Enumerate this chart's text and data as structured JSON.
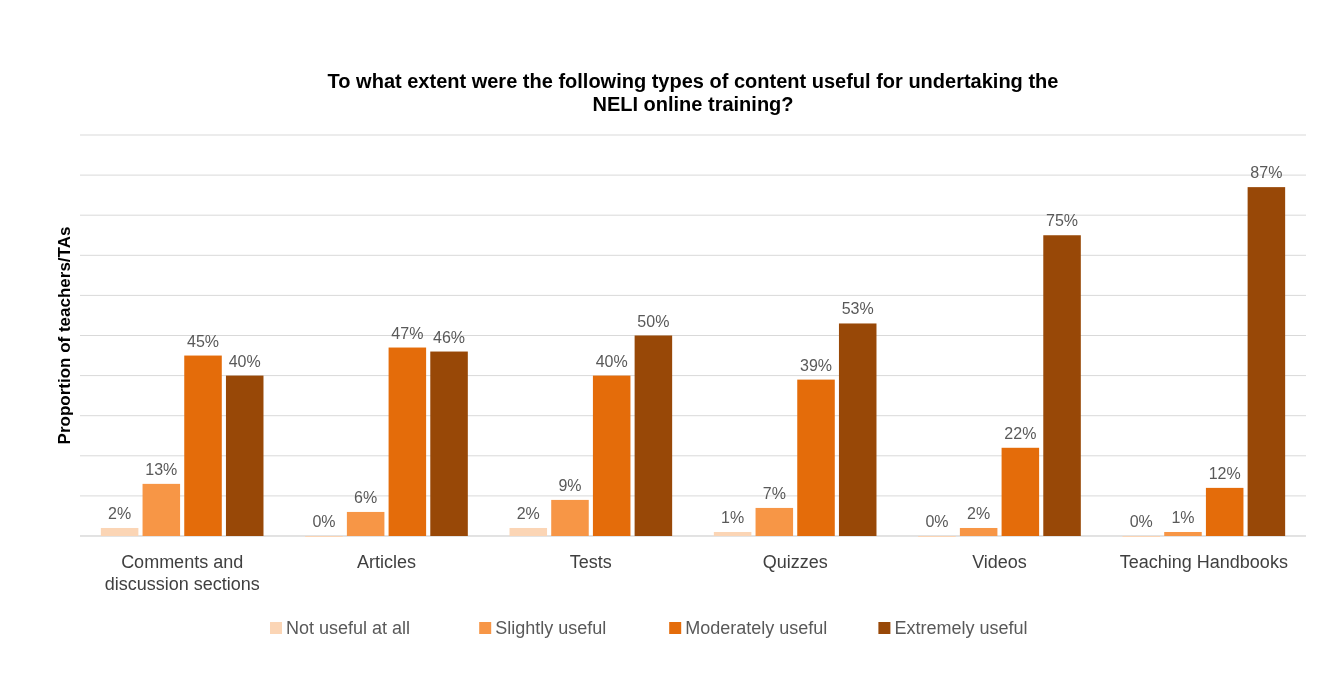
{
  "chart_data": {
    "type": "bar",
    "title": "To what extent were the following types of content useful for undertaking the NELI online training?",
    "ylabel": "Proportion of teachers/TAs",
    "categories": [
      "Comments and discussion sections",
      "Articles",
      "Tests",
      "Quizzes",
      "Videos",
      "Teaching Handbooks"
    ],
    "series": [
      {
        "name": "Not useful at all",
        "color": "#fbd5b5",
        "values": [
          2,
          0,
          2,
          1,
          0,
          0
        ],
        "value_labels": [
          "2%",
          "0%",
          "2%",
          "1%",
          "0%",
          "0%"
        ]
      },
      {
        "name": "Slightly useful",
        "color": "#f79646",
        "values": [
          13,
          6,
          9,
          7,
          2,
          1
        ],
        "value_labels": [
          "13%",
          "6%",
          "9%",
          "7%",
          "2%",
          "1%"
        ]
      },
      {
        "name": "Moderately useful",
        "color": "#e46c0a",
        "values": [
          45,
          47,
          40,
          39,
          22,
          12
        ],
        "value_labels": [
          "45%",
          "47%",
          "40%",
          "39%",
          "22%",
          "12%"
        ]
      },
      {
        "name": "Extremely useful",
        "color": "#984807",
        "values": [
          40,
          46,
          50,
          53,
          75,
          87
        ],
        "value_labels": [
          "40%",
          "46%",
          "50%",
          "53%",
          "75%",
          "87%"
        ]
      }
    ],
    "ylim": [
      0,
      100
    ],
    "yticks": [
      {
        "value": 0,
        "label": null
      },
      {
        "value": 10,
        "label": null
      },
      {
        "value": 20,
        "label": null
      },
      {
        "value": 30,
        "label": null
      },
      {
        "value": 40,
        "label": null
      },
      {
        "value": 50,
        "label": null
      },
      {
        "value": 60,
        "label": null
      },
      {
        "value": 70,
        "label": null
      },
      {
        "value": 80,
        "label": null
      },
      {
        "value": 90,
        "label": null
      },
      {
        "value": 100,
        "label": null
      }
    ],
    "tick_labels": "x",
    "grid": "y",
    "legend": "bottom"
  }
}
